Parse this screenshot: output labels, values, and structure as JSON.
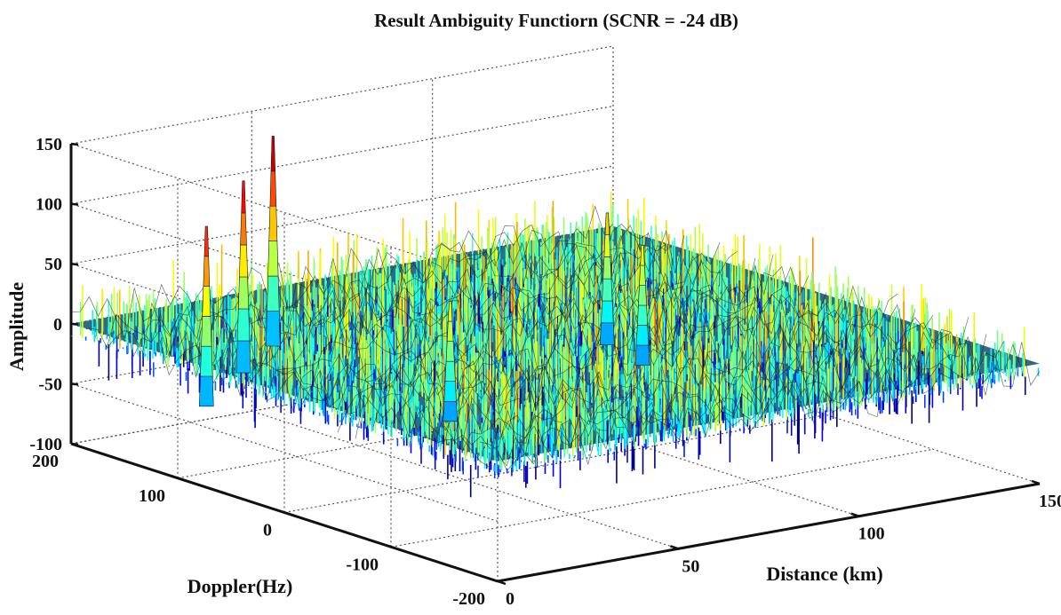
{
  "chart_data": {
    "type": "surface",
    "title": "Result Ambiguity Functiorn (SCNR = -24 dB)",
    "xlabel": "Distance (km)",
    "ylabel": "Doppler(Hz)",
    "zlabel": "Amplitude",
    "xlim": [
      0,
      150
    ],
    "ylim": [
      -200,
      200
    ],
    "zlim": [
      -100,
      150
    ],
    "x_ticks": [
      "0",
      "50",
      "100",
      "150"
    ],
    "y_ticks": [
      "200",
      "100",
      "0",
      "-100",
      "-200"
    ],
    "z_ticks": [
      "150",
      "100",
      "50",
      "0",
      "-50",
      "-100"
    ],
    "grid": true,
    "colormap": "jet",
    "noise_floor": {
      "mean": 0,
      "spread": 30
    },
    "peaks": [
      {
        "distance_km": 5,
        "doppler_hz": 90,
        "amplitude": 110
      },
      {
        "distance_km": 30,
        "doppler_hz": 140,
        "amplitude": 120
      },
      {
        "distance_km": 50,
        "doppler_hz": 180,
        "amplitude": 135
      },
      {
        "distance_km": 40,
        "doppler_hz": -20,
        "amplitude": 60
      },
      {
        "distance_km": 105,
        "doppler_hz": 20,
        "amplitude": 60
      },
      {
        "distance_km": 110,
        "doppler_hz": 70,
        "amplitude": 70
      }
    ]
  }
}
